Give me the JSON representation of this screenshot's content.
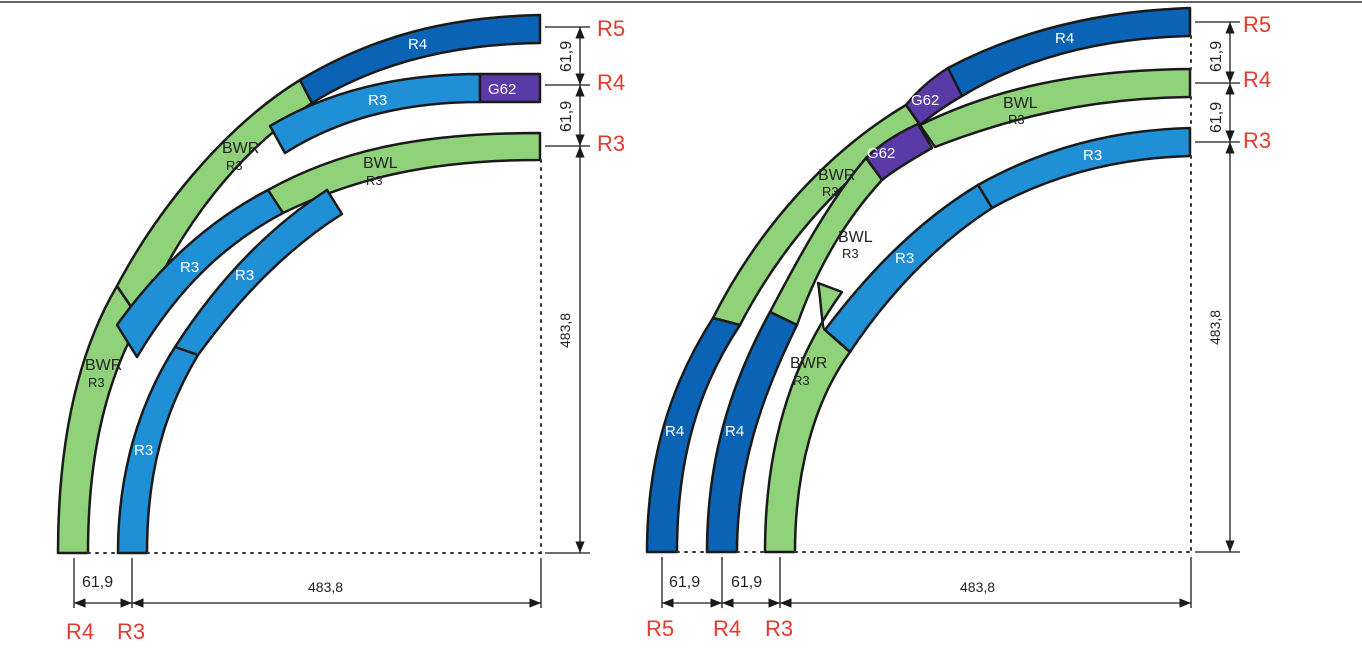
{
  "colors": {
    "green": "#8fd27a",
    "blue_light": "#1f8fd6",
    "blue_dark": "#0b63b5",
    "purple": "#5a3aa6",
    "radius_label": "#e53a2f",
    "line": "#1a1a1a"
  },
  "left_diagram": {
    "pieces": [
      {
        "type": "R4",
        "label": "R4"
      },
      {
        "type": "R3",
        "label": "R3"
      },
      {
        "type": "G62",
        "label": "G62"
      },
      {
        "type": "BWL",
        "label": "BWL",
        "sublabel": "R3"
      },
      {
        "type": "BWR",
        "label": "BWR",
        "sublabel": "R3"
      },
      {
        "type": "R3",
        "label": "R3"
      },
      {
        "type": "R3",
        "label": "R3"
      },
      {
        "type": "BWR",
        "label": "BWR",
        "sublabel": "R3"
      },
      {
        "type": "R3",
        "label": "R3"
      }
    ],
    "right_radii": [
      "R5",
      "R4",
      "R3"
    ],
    "right_dims": [
      "61,9",
      "61,9",
      "483,8"
    ],
    "bottom_dims": [
      "61,9",
      "483,8"
    ],
    "bottom_radii": [
      "R4",
      "R3"
    ]
  },
  "right_diagram": {
    "pieces": [
      {
        "type": "R4",
        "label": "R4"
      },
      {
        "type": "G62",
        "label": "G62"
      },
      {
        "type": "BWL",
        "label": "BWL",
        "sublabel": "R3"
      },
      {
        "type": "G62",
        "label": "G62"
      },
      {
        "type": "BWR",
        "label": "BWR",
        "sublabel": "R3"
      },
      {
        "type": "R3",
        "label": "R3"
      },
      {
        "type": "BWL",
        "label": "BWL",
        "sublabel": "R3"
      },
      {
        "type": "R3",
        "label": "R3"
      },
      {
        "type": "R4",
        "label": "R4"
      },
      {
        "type": "R4",
        "label": "R4"
      },
      {
        "type": "BWR",
        "label": "BWR",
        "sublabel": "R3"
      }
    ],
    "right_radii": [
      "R5",
      "R4",
      "R3"
    ],
    "right_dims": [
      "61,9",
      "61,9",
      "483,8"
    ],
    "bottom_dims": [
      "61,9",
      "61,9",
      "483,8"
    ],
    "bottom_radii": [
      "R5",
      "R4",
      "R3"
    ]
  }
}
